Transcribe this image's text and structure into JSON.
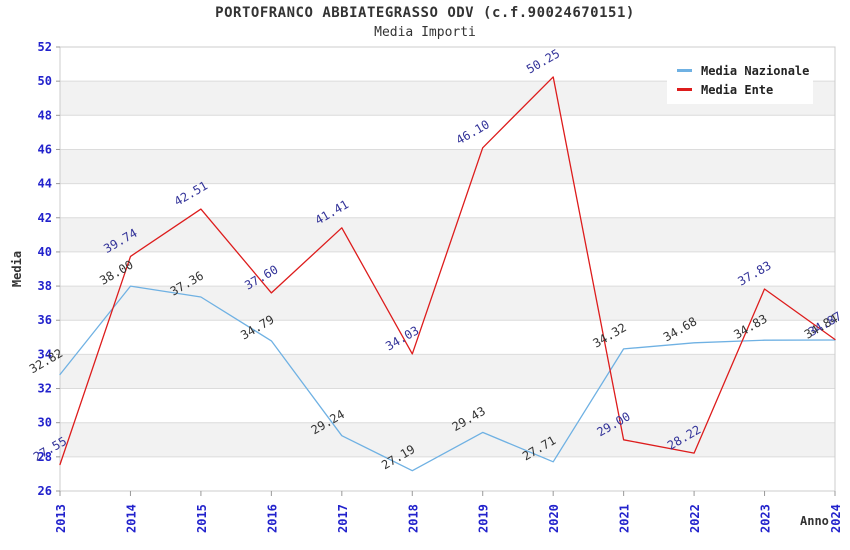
{
  "chart_data": {
    "type": "line",
    "title": "PORTOFRANCO ABBIATEGRASSO ODV (c.f.90024670151)",
    "subtitle": "Media Importi",
    "xlabel": "Anno",
    "ylabel": "Media",
    "ylim": [
      26,
      52
    ],
    "ytick_step": 2,
    "grid": "horizontal-gridlines-with-alternating-bands",
    "legend_position": "top-right-inside",
    "x": [
      "2013",
      "2014",
      "2015",
      "2016",
      "2017",
      "2018",
      "2019",
      "2020",
      "2021",
      "2022",
      "2023",
      "2024"
    ],
    "series": [
      {
        "name": "Media Nazionale",
        "color": "#6fb1e3",
        "label_color": "#333333",
        "values": [
          32.82,
          38.0,
          37.36,
          34.79,
          29.24,
          27.19,
          29.43,
          27.71,
          34.32,
          34.68,
          34.83,
          34.84
        ],
        "labels": [
          "32.82",
          "38.00",
          "37.36",
          "34.79",
          "29.24",
          "27.19",
          "29.43",
          "27.71",
          "34.32",
          "34.68",
          "34.83",
          "34.84"
        ]
      },
      {
        "name": "Media Ente",
        "color": "#dd1c1c",
        "label_color": "#333399",
        "values": [
          27.55,
          39.74,
          42.51,
          37.6,
          41.41,
          34.03,
          46.1,
          50.25,
          29.0,
          28.22,
          37.83,
          34.87
        ],
        "labels": [
          "27.55",
          "39.74",
          "42.51",
          "37.60",
          "41.41",
          "34.03",
          "46.10",
          "50.25",
          "29.00",
          "28.22",
          "37.83",
          "34.87"
        ]
      }
    ],
    "colors": {
      "axis_tick_label": "#2222cc",
      "grid_line": "#dcdcdc",
      "band_fill": "#f2f2f2",
      "plot_border": "#cccccc",
      "tick_mark": "#999999",
      "title_text": "#333333",
      "background": "#ffffff"
    }
  }
}
